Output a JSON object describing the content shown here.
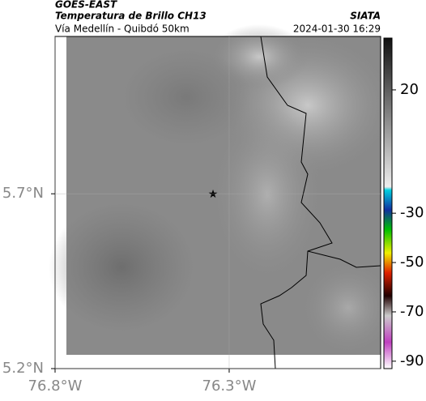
{
  "header": {
    "source": "GOES-EAST",
    "title": "Temperatura de Brillo CH13",
    "subtitle": "Vía Medellín - Quibdó 50km",
    "org": "SIATA",
    "datetime": "2024-01-30 16:29"
  },
  "map": {
    "xlim": [
      -76.8,
      -75.865
    ],
    "ylim": [
      5.2,
      6.15
    ],
    "xticks": [
      {
        "value": -76.8,
        "label": "76.8°W"
      },
      {
        "value": -76.3,
        "label": "76.3°W"
      }
    ],
    "yticks": [
      {
        "value": 5.2,
        "label": "5.2°N"
      },
      {
        "value": 5.7,
        "label": "5.7°N"
      }
    ],
    "grid": true
  },
  "colorbar": {
    "lim": [
      -93,
      41
    ],
    "ticks": [
      20,
      -30,
      -50,
      -70,
      -90
    ]
  }
}
